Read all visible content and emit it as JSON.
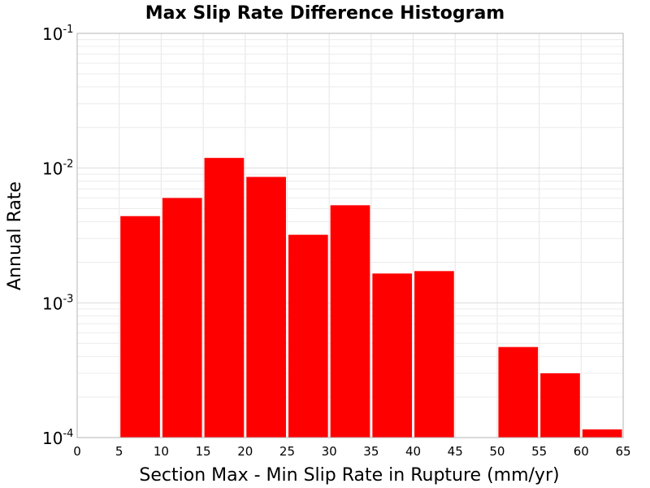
{
  "chart_data": {
    "type": "bar",
    "title": "Max Slip Rate Difference Histogram",
    "xlabel": "Section Max - Min Slip Rate in Rupture (mm/yr)",
    "ylabel": "Annual Rate",
    "x_scale": "linear",
    "y_scale": "log",
    "xlim": [
      0,
      65
    ],
    "ylim": [
      0.0001,
      0.1
    ],
    "x_ticks": [
      0,
      5,
      10,
      15,
      20,
      25,
      30,
      35,
      40,
      45,
      50,
      55,
      60,
      65
    ],
    "y_ticks": [
      {
        "base": "10",
        "exp": "-1",
        "value": 0.1
      },
      {
        "base": "10",
        "exp": "-2",
        "value": 0.01
      },
      {
        "base": "10",
        "exp": "-3",
        "value": 0.001
      },
      {
        "base": "10",
        "exp": "-4",
        "value": 0.0001
      }
    ],
    "grid": true,
    "bar_color": "#ff0000",
    "bins": [
      {
        "start": 5,
        "end": 10,
        "value": 0.0044
      },
      {
        "start": 10,
        "end": 15,
        "value": 0.006
      },
      {
        "start": 15,
        "end": 20,
        "value": 0.0119
      },
      {
        "start": 20,
        "end": 25,
        "value": 0.0086
      },
      {
        "start": 25,
        "end": 30,
        "value": 0.0032
      },
      {
        "start": 30,
        "end": 35,
        "value": 0.0053
      },
      {
        "start": 35,
        "end": 40,
        "value": 0.00165
      },
      {
        "start": 40,
        "end": 45,
        "value": 0.00172
      },
      {
        "start": 50,
        "end": 55,
        "value": 0.00047
      },
      {
        "start": 55,
        "end": 60,
        "value": 0.0003
      },
      {
        "start": 60,
        "end": 65,
        "value": 0.000115
      }
    ]
  }
}
